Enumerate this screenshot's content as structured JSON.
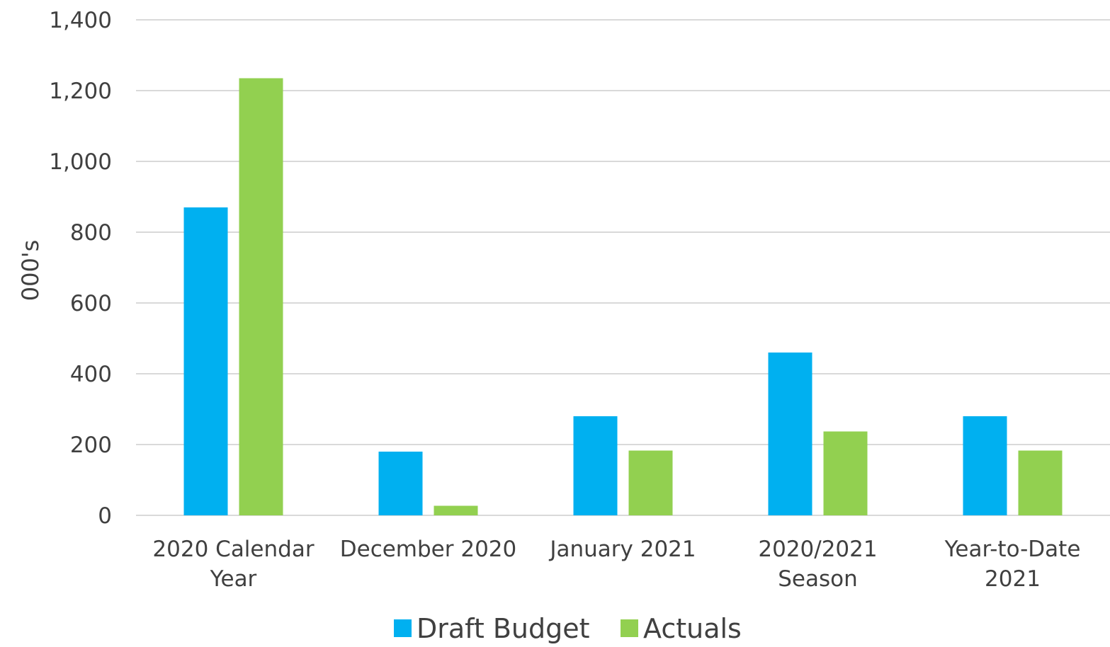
{
  "chart_data": {
    "type": "bar",
    "title": "",
    "xlabel": "",
    "ylabel": "000's",
    "ylim": [
      0,
      1400
    ],
    "yticks": [
      0,
      200,
      400,
      600,
      800,
      1000,
      1200,
      1400
    ],
    "ytick_labels": [
      "0",
      "200",
      "400",
      "600",
      "800",
      "1,000",
      "1,200",
      "1,400"
    ],
    "grid": true,
    "legend_position": "bottom",
    "categories": [
      [
        "2020 Calendar",
        "Year"
      ],
      [
        "December 2020"
      ],
      [
        "January 2021"
      ],
      [
        "2020/2021",
        "Season"
      ],
      [
        "Year-to-Date",
        "2021"
      ]
    ],
    "series": [
      {
        "name": "Draft Budget",
        "color": "#00B0F0",
        "values": [
          870,
          180,
          280,
          460,
          280
        ]
      },
      {
        "name": "Actuals",
        "color": "#92D050",
        "values": [
          1235,
          27,
          183,
          237,
          183
        ]
      }
    ]
  }
}
